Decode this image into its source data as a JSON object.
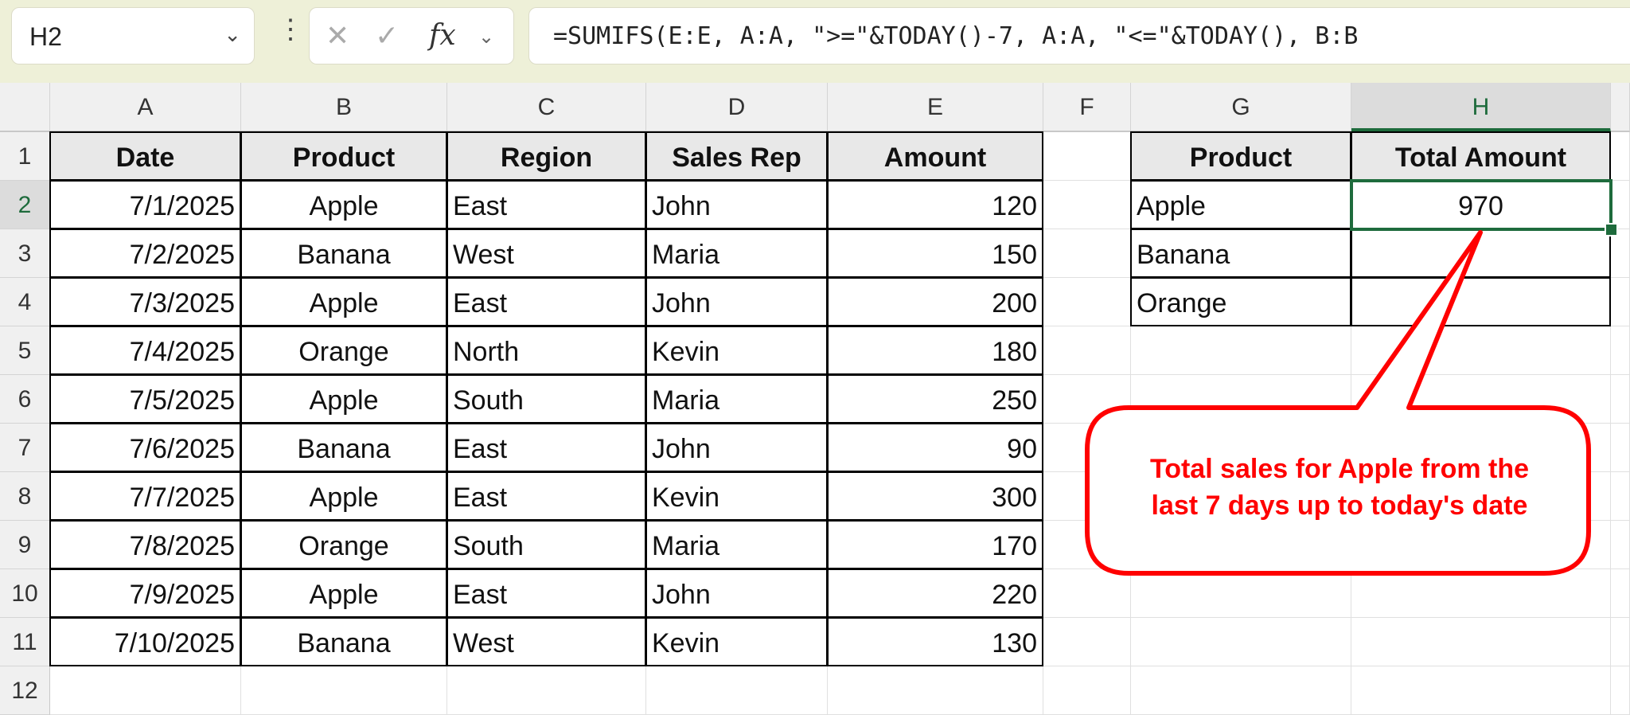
{
  "formula_bar": {
    "name_box": "H2",
    "name_box_dropdown_icon": "chevron-down-icon",
    "cancel_icon": "x-icon",
    "enter_icon": "check-icon",
    "fx_label": "fx",
    "formula": "=SUMIFS(E:E, A:A, \">=\"&TODAY()-7, A:A, \"<=\"&TODAY(), B:B"
  },
  "columns": [
    "A",
    "B",
    "C",
    "D",
    "E",
    "F",
    "G",
    "H"
  ],
  "rows": [
    "1",
    "2",
    "3",
    "4",
    "5",
    "6",
    "7",
    "8",
    "9",
    "10",
    "11",
    "12"
  ],
  "selected_cell": "H2",
  "main_table": {
    "headers": [
      "Date",
      "Product",
      "Region",
      "Sales Rep",
      "Amount"
    ],
    "rows": [
      [
        "7/1/2025",
        "Apple",
        "East",
        "John",
        "120"
      ],
      [
        "7/2/2025",
        "Banana",
        "West",
        "Maria",
        "150"
      ],
      [
        "7/3/2025",
        "Apple",
        "East",
        "John",
        "200"
      ],
      [
        "7/4/2025",
        "Orange",
        "North",
        "Kevin",
        "180"
      ],
      [
        "7/5/2025",
        "Apple",
        "South",
        "Maria",
        "250"
      ],
      [
        "7/6/2025",
        "Banana",
        "East",
        "John",
        "90"
      ],
      [
        "7/7/2025",
        "Apple",
        "East",
        "Kevin",
        "300"
      ],
      [
        "7/8/2025",
        "Orange",
        "South",
        "Maria",
        "170"
      ],
      [
        "7/9/2025",
        "Apple",
        "East",
        "John",
        "220"
      ],
      [
        "7/10/2025",
        "Banana",
        "West",
        "Kevin",
        "130"
      ]
    ]
  },
  "summary_table": {
    "headers": [
      "Product",
      "Total Amount"
    ],
    "rows": [
      [
        "Apple",
        "970"
      ],
      [
        "Banana",
        ""
      ],
      [
        "Orange",
        ""
      ]
    ]
  },
  "callout": {
    "line1": "Total sales for Apple from the",
    "line2": "last 7 days up to today's date",
    "color": "#ff0000"
  },
  "colors": {
    "accent": "#1e6b3c",
    "toolbar_bg": "#eef0d8"
  }
}
